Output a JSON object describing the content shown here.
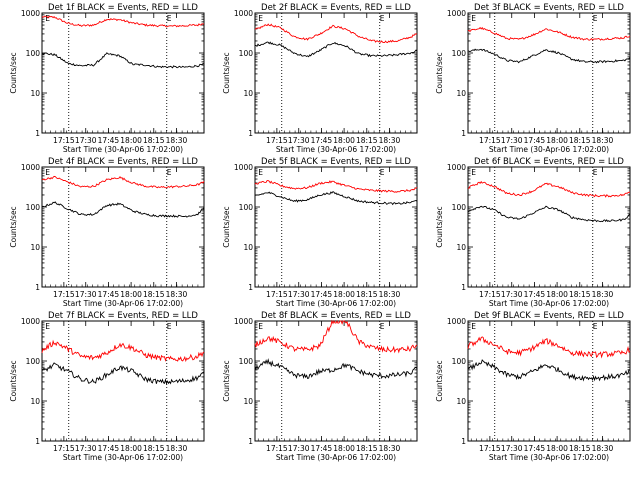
{
  "colors": {
    "events": "#000000",
    "lld": "#ff0000",
    "axes": "#000000",
    "background": "#ffffff"
  },
  "chart_data": [
    {
      "type": "line",
      "title": "Det 1f BLACK = Events, RED = LLD",
      "xlabel": "Start Time (30-Apr-06 17:02:00)",
      "ylabel": "Counts/sec",
      "ylim": [
        1,
        1000
      ],
      "yscale": "log",
      "xlim": [
        0,
        100
      ],
      "x_tick_labels": [
        "17:15",
        "17:30",
        "17:45",
        "18:00",
        "18:15",
        "18:30"
      ],
      "y_tick_labels": [
        "1",
        "10",
        "100",
        "1000"
      ],
      "markers": [
        "E",
        "E"
      ],
      "x": [
        0,
        8,
        16,
        24,
        32,
        40,
        48,
        56,
        64,
        72,
        80,
        88,
        96,
        100
      ],
      "series": [
        {
          "values": [
            100,
            90,
            55,
            48,
            50,
            95,
            85,
            52,
            50,
            45,
            45,
            44,
            48,
            52
          ]
        },
        {
          "values": [
            800,
            780,
            550,
            480,
            500,
            700,
            680,
            560,
            500,
            480,
            470,
            480,
            500,
            550
          ]
        }
      ]
    },
    {
      "type": "line",
      "title": "Det 2f BLACK = Events, RED = LLD",
      "xlabel": "Start Time (30-Apr-06 17:02:00)",
      "ylabel": "Counts/sec",
      "ylim": [
        1,
        1000
      ],
      "yscale": "log",
      "xlim": [
        0,
        100
      ],
      "x_tick_labels": [
        "17:15",
        "17:30",
        "17:45",
        "18:00",
        "18:15",
        "18:30"
      ],
      "y_tick_labels": [
        "1",
        "10",
        "100",
        "1000"
      ],
      "markers": [
        "E",
        "E"
      ],
      "x": [
        0,
        8,
        16,
        24,
        32,
        40,
        48,
        56,
        64,
        72,
        80,
        88,
        96,
        100
      ],
      "series": [
        {
          "values": [
            150,
            185,
            155,
            100,
            80,
            115,
            180,
            150,
            95,
            85,
            85,
            90,
            100,
            115
          ]
        },
        {
          "values": [
            380,
            520,
            420,
            260,
            220,
            300,
            470,
            400,
            260,
            200,
            190,
            200,
            250,
            300
          ]
        }
      ]
    },
    {
      "type": "line",
      "title": "Det 3f BLACK = Events, RED = LLD",
      "xlabel": "Start Time (30-Apr-06 17:02:00)",
      "ylabel": "Counts/sec",
      "ylim": [
        1,
        1000
      ],
      "yscale": "log",
      "xlim": [
        0,
        100
      ],
      "x_tick_labels": [
        "17:15",
        "17:30",
        "17:45",
        "18:00",
        "18:15",
        "18:30"
      ],
      "y_tick_labels": [
        "1",
        "10",
        "100",
        "1000"
      ],
      "markers": [
        "E",
        "E"
      ],
      "x": [
        0,
        8,
        16,
        24,
        32,
        40,
        48,
        56,
        64,
        72,
        80,
        88,
        96,
        100
      ],
      "series": [
        {
          "values": [
            110,
            125,
            95,
            65,
            60,
            85,
            120,
            100,
            70,
            60,
            60,
            62,
            65,
            75
          ]
        },
        {
          "values": [
            350,
            420,
            320,
            230,
            220,
            280,
            400,
            330,
            250,
            220,
            220,
            230,
            240,
            270
          ]
        }
      ]
    },
    {
      "type": "line",
      "title": "Det 4f BLACK = Events, RED = LLD",
      "xlabel": "Start Time (30-Apr-06 17:02:00)",
      "ylabel": "Counts/sec",
      "ylim": [
        1,
        1000
      ],
      "yscale": "log",
      "xlim": [
        0,
        100
      ],
      "x_tick_labels": [
        "17:15",
        "17:30",
        "17:45",
        "18:00",
        "18:15",
        "18:30"
      ],
      "y_tick_labels": [
        "1",
        "10",
        "100",
        "1000"
      ],
      "markers": [
        "E",
        "E"
      ],
      "x": [
        0,
        8,
        16,
        24,
        32,
        40,
        48,
        56,
        64,
        72,
        80,
        88,
        96,
        100
      ],
      "series": [
        {
          "values": [
            100,
            130,
            90,
            65,
            65,
            110,
            120,
            80,
            65,
            60,
            60,
            58,
            65,
            95
          ]
        },
        {
          "values": [
            480,
            560,
            420,
            320,
            330,
            480,
            550,
            400,
            330,
            310,
            320,
            330,
            360,
            420
          ]
        }
      ]
    },
    {
      "type": "line",
      "title": "Det 5f BLACK = Events, RED = LLD",
      "xlabel": "Start Time (30-Apr-06 17:02:00)",
      "ylabel": "Counts/sec",
      "ylim": [
        1,
        1000
      ],
      "yscale": "log",
      "xlim": [
        0,
        100
      ],
      "x_tick_labels": [
        "17:15",
        "17:30",
        "17:45",
        "18:00",
        "18:15",
        "18:30"
      ],
      "y_tick_labels": [
        "1",
        "10",
        "100",
        "1000"
      ],
      "markers": [
        "E",
        "E"
      ],
      "x": [
        0,
        8,
        16,
        24,
        32,
        40,
        48,
        56,
        64,
        72,
        80,
        88,
        96,
        100
      ],
      "series": [
        {
          "values": [
            190,
            230,
            180,
            140,
            150,
            200,
            230,
            180,
            140,
            130,
            125,
            120,
            130,
            145
          ]
        },
        {
          "values": [
            380,
            440,
            340,
            290,
            300,
            390,
            430,
            340,
            280,
            260,
            250,
            245,
            260,
            290
          ]
        }
      ]
    },
    {
      "type": "line",
      "title": "Det 6f BLACK = Events, RED = LLD",
      "xlabel": "Start Time (30-Apr-06 17:02:00)",
      "ylabel": "Counts/sec",
      "ylim": [
        1,
        1000
      ],
      "yscale": "log",
      "xlim": [
        0,
        100
      ],
      "x_tick_labels": [
        "17:15",
        "17:30",
        "17:45",
        "18:00",
        "18:15",
        "18:30"
      ],
      "y_tick_labels": [
        "1",
        "10",
        "100",
        "1000"
      ],
      "markers": [
        "E",
        "E"
      ],
      "x": [
        0,
        8,
        16,
        24,
        32,
        40,
        48,
        56,
        64,
        72,
        80,
        88,
        96,
        100
      ],
      "series": [
        {
          "values": [
            80,
            105,
            85,
            55,
            50,
            70,
            100,
            85,
            55,
            48,
            45,
            45,
            48,
            65
          ]
        },
        {
          "values": [
            300,
            420,
            330,
            220,
            200,
            250,
            380,
            320,
            230,
            200,
            190,
            190,
            200,
            240
          ]
        }
      ]
    },
    {
      "type": "line",
      "title": "Det 7f BLACK = Events, RED = LLD",
      "xlabel": "Start Time (30-Apr-06 17:02:00)",
      "ylabel": "Counts/sec",
      "ylim": [
        1,
        1000
      ],
      "yscale": "log",
      "xlim": [
        0,
        100
      ],
      "x_tick_labels": [
        "17:15",
        "17:30",
        "17:45",
        "18:00",
        "18:15",
        "18:30"
      ],
      "y_tick_labels": [
        "1",
        "10",
        "100",
        "1000"
      ],
      "markers": [
        "E",
        "E"
      ],
      "x": [
        0,
        8,
        16,
        24,
        32,
        40,
        48,
        56,
        64,
        72,
        80,
        88,
        96,
        100
      ],
      "series": [
        {
          "values": [
            55,
            80,
            55,
            35,
            30,
            45,
            70,
            55,
            35,
            30,
            30,
            32,
            38,
            50
          ]
        },
        {
          "values": [
            180,
            300,
            200,
            130,
            120,
            160,
            260,
            210,
            140,
            120,
            110,
            115,
            130,
            170
          ]
        }
      ]
    },
    {
      "type": "line",
      "title": "Det 8f BLACK = Events, RED = LLD",
      "xlabel": "Start Time (30-Apr-06 17:02:00)",
      "ylabel": "Counts/sec",
      "ylim": [
        1,
        1000
      ],
      "yscale": "log",
      "xlim": [
        0,
        100
      ],
      "x_tick_labels": [
        "17:15",
        "17:30",
        "17:45",
        "18:00",
        "18:15",
        "18:30"
      ],
      "y_tick_labels": [
        "1",
        "10",
        "100",
        "1000"
      ],
      "markers": [
        "E",
        "E"
      ],
      "x": [
        0,
        8,
        16,
        24,
        32,
        40,
        48,
        56,
        64,
        72,
        80,
        88,
        96,
        100
      ],
      "series": [
        {
          "values": [
            65,
            95,
            70,
            45,
            40,
            55,
            60,
            80,
            55,
            45,
            42,
            45,
            50,
            65
          ]
        },
        {
          "values": [
            250,
            380,
            290,
            200,
            190,
            240,
            1000,
            1000,
            300,
            220,
            190,
            190,
            200,
            250
          ]
        }
      ]
    },
    {
      "type": "line",
      "title": "Det 9f BLACK = Events, RED = LLD",
      "xlabel": "Start Time (30-Apr-06 17:02:00)",
      "ylabel": "Counts/sec",
      "ylim": [
        1,
        1000
      ],
      "yscale": "log",
      "xlim": [
        0,
        100
      ],
      "x_tick_labels": [
        "17:15",
        "17:30",
        "17:45",
        "18:00",
        "18:15",
        "18:30"
      ],
      "y_tick_labels": [
        "1",
        "10",
        "100",
        "1000"
      ],
      "markers": [
        "E",
        "E"
      ],
      "x": [
        0,
        8,
        16,
        24,
        32,
        40,
        48,
        56,
        64,
        72,
        80,
        88,
        96,
        100
      ],
      "series": [
        {
          "values": [
            60,
            95,
            70,
            45,
            40,
            55,
            80,
            60,
            40,
            38,
            38,
            40,
            45,
            55
          ]
        },
        {
          "values": [
            230,
            360,
            260,
            170,
            160,
            210,
            320,
            240,
            160,
            150,
            145,
            150,
            160,
            200
          ]
        }
      ]
    }
  ]
}
